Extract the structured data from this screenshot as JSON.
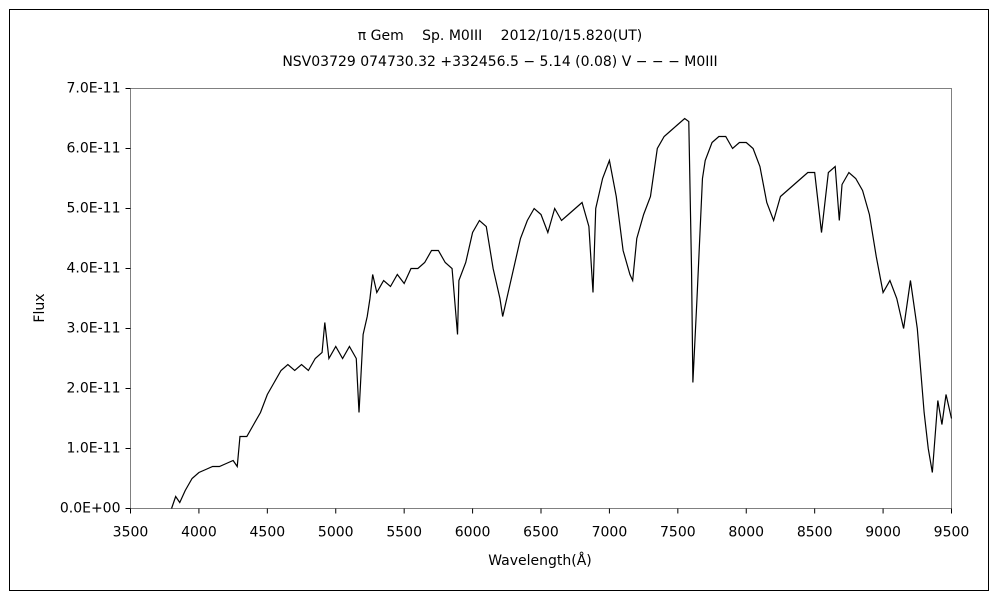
{
  "chart_data": {
    "type": "line",
    "title": "π Gem　 Sp. M0III　 2012/10/15.820(UT)",
    "subtitle": "NSV03729 074730.32 +332456.5 − 5.14 (0.08) V − − − M0III",
    "x_label": "Wavelength(Å)",
    "y_label": "Flux",
    "color": "#000000",
    "xlim": [
      3500,
      9500
    ],
    "xticks": [
      3500,
      4000,
      4500,
      5000,
      5500,
      6000,
      6500,
      7000,
      7500,
      8000,
      8500,
      9000,
      9500
    ],
    "ylim": [
      0,
      7e-11
    ],
    "yticks": [
      {
        "value": 0,
        "label": "0.0E+00"
      },
      {
        "value": 1e-11,
        "label": "1.0E-11"
      },
      {
        "value": 2e-11,
        "label": "2.0E-11"
      },
      {
        "value": 3e-11,
        "label": "3.0E-11"
      },
      {
        "value": 4e-11,
        "label": "4.0E-11"
      },
      {
        "value": 5e-11,
        "label": "5.0E-11"
      },
      {
        "value": 6e-11,
        "label": "6.0E-11"
      },
      {
        "value": 7e-11,
        "label": "7.0E-11"
      }
    ],
    "grid": false,
    "x": [
      3800,
      3830,
      3860,
      3900,
      3950,
      4000,
      4050,
      4100,
      4150,
      4200,
      4250,
      4280,
      4300,
      4350,
      4400,
      4450,
      4500,
      4550,
      4600,
      4650,
      4700,
      4750,
      4800,
      4850,
      4900,
      4920,
      4950,
      5000,
      5050,
      5100,
      5150,
      5170,
      5200,
      5230,
      5250,
      5270,
      5300,
      5350,
      5400,
      5450,
      5500,
      5550,
      5600,
      5650,
      5700,
      5750,
      5800,
      5850,
      5890,
      5900,
      5950,
      6000,
      6050,
      6100,
      6150,
      6200,
      6220,
      6250,
      6300,
      6350,
      6400,
      6450,
      6500,
      6550,
      6600,
      6650,
      6700,
      6750,
      6800,
      6850,
      6880,
      6900,
      6950,
      7000,
      7050,
      7100,
      7150,
      7170,
      7200,
      7250,
      7300,
      7350,
      7400,
      7450,
      7500,
      7550,
      7580,
      7600,
      7610,
      7640,
      7680,
      7700,
      7750,
      7800,
      7850,
      7900,
      7950,
      8000,
      8050,
      8100,
      8150,
      8200,
      8250,
      8300,
      8350,
      8400,
      8450,
      8500,
      8550,
      8600,
      8650,
      8680,
      8700,
      8750,
      8800,
      8850,
      8900,
      8950,
      9000,
      9050,
      9100,
      9150,
      9200,
      9250,
      9300,
      9330,
      9360,
      9400,
      9430,
      9460,
      9500
    ],
    "values": [
      0,
      2e-12,
      1e-12,
      3e-12,
      5e-12,
      6e-12,
      6.5e-12,
      7e-12,
      7e-12,
      7.5e-12,
      8e-12,
      7e-12,
      1.2e-11,
      1.2e-11,
      1.4e-11,
      1.6e-11,
      1.9e-11,
      2.1e-11,
      2.3e-11,
      2.4e-11,
      2.3e-11,
      2.4e-11,
      2.3e-11,
      2.5e-11,
      2.6e-11,
      3.1e-11,
      2.5e-11,
      2.7e-11,
      2.5e-11,
      2.7e-11,
      2.5e-11,
      1.6e-11,
      2.9e-11,
      3.2e-11,
      3.5e-11,
      3.9e-11,
      3.6e-11,
      3.8e-11,
      3.7e-11,
      3.9e-11,
      3.75e-11,
      4e-11,
      4e-11,
      4.1e-11,
      4.3e-11,
      4.3e-11,
      4.1e-11,
      4e-11,
      2.9e-11,
      3.8e-11,
      4.1e-11,
      4.6e-11,
      4.8e-11,
      4.7e-11,
      4e-11,
      3.5e-11,
      3.2e-11,
      3.5e-11,
      4e-11,
      4.5e-11,
      4.8e-11,
      5e-11,
      4.9e-11,
      4.6e-11,
      5e-11,
      4.8e-11,
      4.9e-11,
      5e-11,
      5.1e-11,
      4.7e-11,
      3.6e-11,
      5e-11,
      5.5e-11,
      5.8e-11,
      5.2e-11,
      4.3e-11,
      3.9e-11,
      3.8e-11,
      4.5e-11,
      4.9e-11,
      5.2e-11,
      6e-11,
      6.2e-11,
      6.3e-11,
      6.4e-11,
      6.5e-11,
      6.45e-11,
      4e-11,
      2.1e-11,
      3.5e-11,
      5.5e-11,
      5.8e-11,
      6.1e-11,
      6.2e-11,
      6.2e-11,
      6e-11,
      6.1e-11,
      6.1e-11,
      6e-11,
      5.7e-11,
      5.1e-11,
      4.8e-11,
      5.2e-11,
      5.3e-11,
      5.4e-11,
      5.5e-11,
      5.6e-11,
      5.6e-11,
      4.6e-11,
      5.6e-11,
      5.7e-11,
      4.8e-11,
      5.4e-11,
      5.6e-11,
      5.5e-11,
      5.3e-11,
      4.9e-11,
      4.2e-11,
      3.6e-11,
      3.8e-11,
      3.5e-11,
      3e-11,
      3.8e-11,
      3e-11,
      1.6e-11,
      1e-11,
      6e-12,
      1.8e-11,
      1.4e-11,
      1.9e-11,
      1.5e-11
    ]
  }
}
